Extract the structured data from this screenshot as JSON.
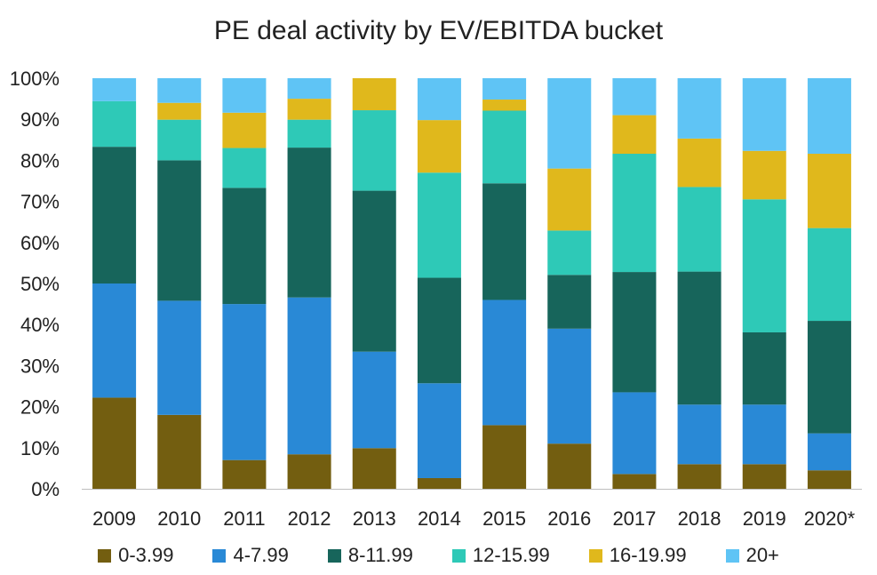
{
  "chart_data": {
    "type": "bar",
    "stacked": true,
    "title": "PE deal activity by EV/EBITDA bucket",
    "xlabel": "",
    "ylabel": "",
    "ylim": [
      0,
      100
    ],
    "y_ticks": [
      "0%",
      "10%",
      "20%",
      "30%",
      "40%",
      "50%",
      "60%",
      "70%",
      "80%",
      "90%",
      "100%"
    ],
    "grid": false,
    "legend_position": "bottom",
    "categories": [
      "2009",
      "2010",
      "2011",
      "2012",
      "2013",
      "2014",
      "2015",
      "2016",
      "2017",
      "2018",
      "2019",
      "2020*"
    ],
    "series": [
      {
        "name": "0-3.99",
        "color": "#735e10",
        "values": [
          22.2,
          18.0,
          7.0,
          8.4,
          9.9,
          2.6,
          15.5,
          11.0,
          3.6,
          6.0,
          6.0,
          4.5
        ]
      },
      {
        "name": "4-7.99",
        "color": "#2989d6",
        "values": [
          27.8,
          27.8,
          38.0,
          38.2,
          23.5,
          23.1,
          30.5,
          28.0,
          19.9,
          14.5,
          14.5,
          9.0
        ]
      },
      {
        "name": "8-11.99",
        "color": "#17655b",
        "values": [
          33.3,
          34.2,
          28.3,
          36.5,
          39.2,
          25.7,
          28.4,
          13.1,
          29.3,
          32.4,
          17.6,
          27.4
        ]
      },
      {
        "name": "12-15.99",
        "color": "#2ec9b7",
        "values": [
          11.1,
          9.9,
          9.7,
          6.8,
          19.6,
          25.6,
          17.7,
          10.8,
          28.8,
          20.6,
          32.4,
          22.6
        ]
      },
      {
        "name": "16-19.99",
        "color": "#e0b81c",
        "values": [
          0,
          4.1,
          8.6,
          5.1,
          7.8,
          12.8,
          2.7,
          15.1,
          9.4,
          11.8,
          11.8,
          18.1
        ]
      },
      {
        "name": "20+",
        "color": "#5fc4f5",
        "values": [
          5.6,
          6.0,
          8.4,
          5.0,
          0,
          10.2,
          5.2,
          22.0,
          9.0,
          14.7,
          17.7,
          18.4
        ]
      }
    ]
  }
}
